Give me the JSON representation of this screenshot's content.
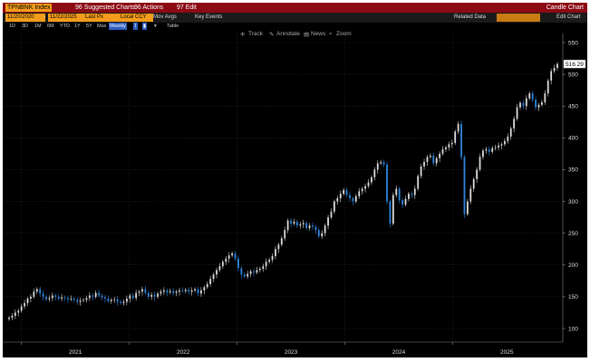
{
  "titlebar": {
    "ticker": "TPNBNK Index",
    "suggested": "96 Suggested Charts",
    "actions": "96 Actions",
    "edit": "97 Edit",
    "right": "Candle Chart"
  },
  "toolbar": {
    "start_date": "11/20/2020",
    "end_date": "11/22/2025",
    "price_field": "Last Px",
    "price_type": "Local CCY",
    "mov_avgs": "Mov Avgs",
    "key_events": "Key Events",
    "related_data": "Related Data",
    "edit_chart": "Edit Chart"
  },
  "periods": {
    "items": [
      "1D",
      "3D",
      "1M",
      "6M",
      "YTD",
      "1Y",
      "5Y",
      "Max"
    ],
    "selected": "Weekly",
    "table": "Table"
  },
  "chart_tools": {
    "track": "Track",
    "annotate": "Annotate",
    "news": "News",
    "zoom": "Zoom"
  },
  "chart_data": {
    "type": "candlestick",
    "title": "",
    "y_ticks": [
      100,
      150,
      200,
      250,
      300,
      350,
      400,
      450,
      500,
      550
    ],
    "x_ticks": [
      "2021",
      "2022",
      "2023",
      "2024",
      "2025"
    ],
    "ylim": [
      85,
      560
    ],
    "last_value": "516.29",
    "colors": {
      "up": "#dcdcdc",
      "down": "#2e86de",
      "last_label_bg": "#ffffff"
    },
    "weekly_closes": [
      117,
      120,
      125,
      128,
      135,
      140,
      147,
      150,
      158,
      162,
      155,
      150,
      146,
      148,
      152,
      150,
      147,
      149,
      148,
      146,
      147,
      145,
      142,
      144,
      145,
      148,
      152,
      150,
      156,
      152,
      149,
      147,
      143,
      145,
      146,
      142,
      140,
      142,
      147,
      152,
      148,
      156,
      158,
      162,
      156,
      150,
      153,
      150,
      155,
      158,
      160,
      157,
      159,
      156,
      158,
      160,
      159,
      161,
      158,
      160,
      162,
      155,
      160,
      165,
      170,
      178,
      185,
      192,
      198,
      205,
      210,
      215,
      218,
      210,
      195,
      185,
      182,
      186,
      190,
      188,
      192,
      194,
      198,
      205,
      208,
      214,
      225,
      232,
      242,
      255,
      270,
      265,
      268,
      262,
      264,
      266,
      258,
      262,
      260,
      255,
      245,
      250,
      262,
      275,
      284,
      300,
      305,
      312,
      318,
      310,
      305,
      300,
      308,
      316,
      320,
      324,
      330,
      338,
      350,
      360,
      362,
      358,
      300,
      265,
      310,
      320,
      302,
      295,
      304,
      312,
      310,
      320,
      340,
      355,
      362,
      370,
      372,
      360,
      368,
      375,
      382,
      385,
      390,
      392,
      410,
      422,
      370,
      280,
      300,
      320,
      335,
      350,
      370,
      380,
      382,
      378,
      384,
      385,
      388,
      390,
      395,
      402,
      415,
      430,
      448,
      455,
      450,
      462,
      470,
      460,
      448,
      452,
      456,
      470,
      490,
      505,
      510,
      516.29
    ]
  }
}
